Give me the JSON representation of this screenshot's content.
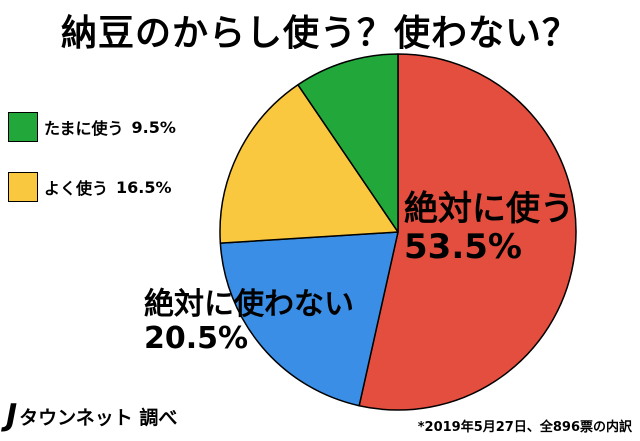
{
  "header": {
    "title": "納豆のからし使う？使わない？"
  },
  "chart_data": {
    "type": "pie",
    "title": "納豆のからし使う？使わない？",
    "slices": [
      {
        "label": "絶対に使う",
        "value": 53.5,
        "display": "53.5%",
        "color": "#e34e3f"
      },
      {
        "label": "絶対に使わない",
        "value": 20.5,
        "display": "20.5%",
        "color": "#3a8ee6"
      },
      {
        "label": "よく使う",
        "value": 16.5,
        "display": "16.5%",
        "color": "#f9c83e"
      },
      {
        "label": "たまに使う",
        "value": 9.5,
        "display": "9.5%",
        "color": "#22a83a"
      }
    ],
    "legend": {
      "placement": "left",
      "items": [
        {
          "label": "たまに使う",
          "value": "9.5%",
          "color": "#22a83a"
        },
        {
          "label": "よく使う",
          "value": "16.5%",
          "color": "#f9c83e"
        }
      ]
    }
  },
  "footer": {
    "logo_mark": "J",
    "logo_text": "タウンネット 調べ",
    "note": "*2019年5月27日、全896票の内訳"
  }
}
